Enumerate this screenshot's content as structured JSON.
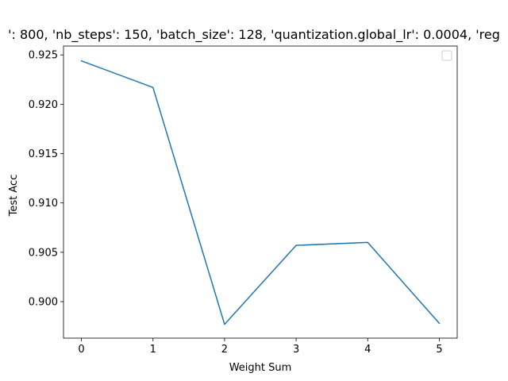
{
  "chart_data": {
    "type": "line",
    "title": "': 800, 'nb_steps': 150, 'batch_size': 128, 'quantization.global_lr': 0.0004, 'reg",
    "xlabel": "Weight Sum",
    "ylabel": "Test Acc",
    "x": [
      0,
      1,
      2,
      3,
      4,
      5
    ],
    "series": [
      {
        "values": [
          0.9244,
          0.9217,
          0.8977,
          0.9057,
          0.906,
          0.8978
        ],
        "color": "#1f77b4"
      }
    ],
    "xlim": [
      -0.25,
      5.25
    ],
    "ylim": [
      0.8963,
      0.9259
    ],
    "xticks": [
      0,
      1,
      2,
      3,
      4,
      5
    ],
    "xtick_labels": [
      "0",
      "1",
      "2",
      "3",
      "4",
      "5"
    ],
    "yticks": [
      0.9,
      0.905,
      0.91,
      0.915,
      0.92,
      0.925
    ],
    "ytick_labels": [
      "0.900",
      "0.905",
      "0.910",
      "0.915",
      "0.920",
      "0.925"
    ],
    "grid": false,
    "legend": {
      "placement": "top-right",
      "entries": []
    }
  }
}
